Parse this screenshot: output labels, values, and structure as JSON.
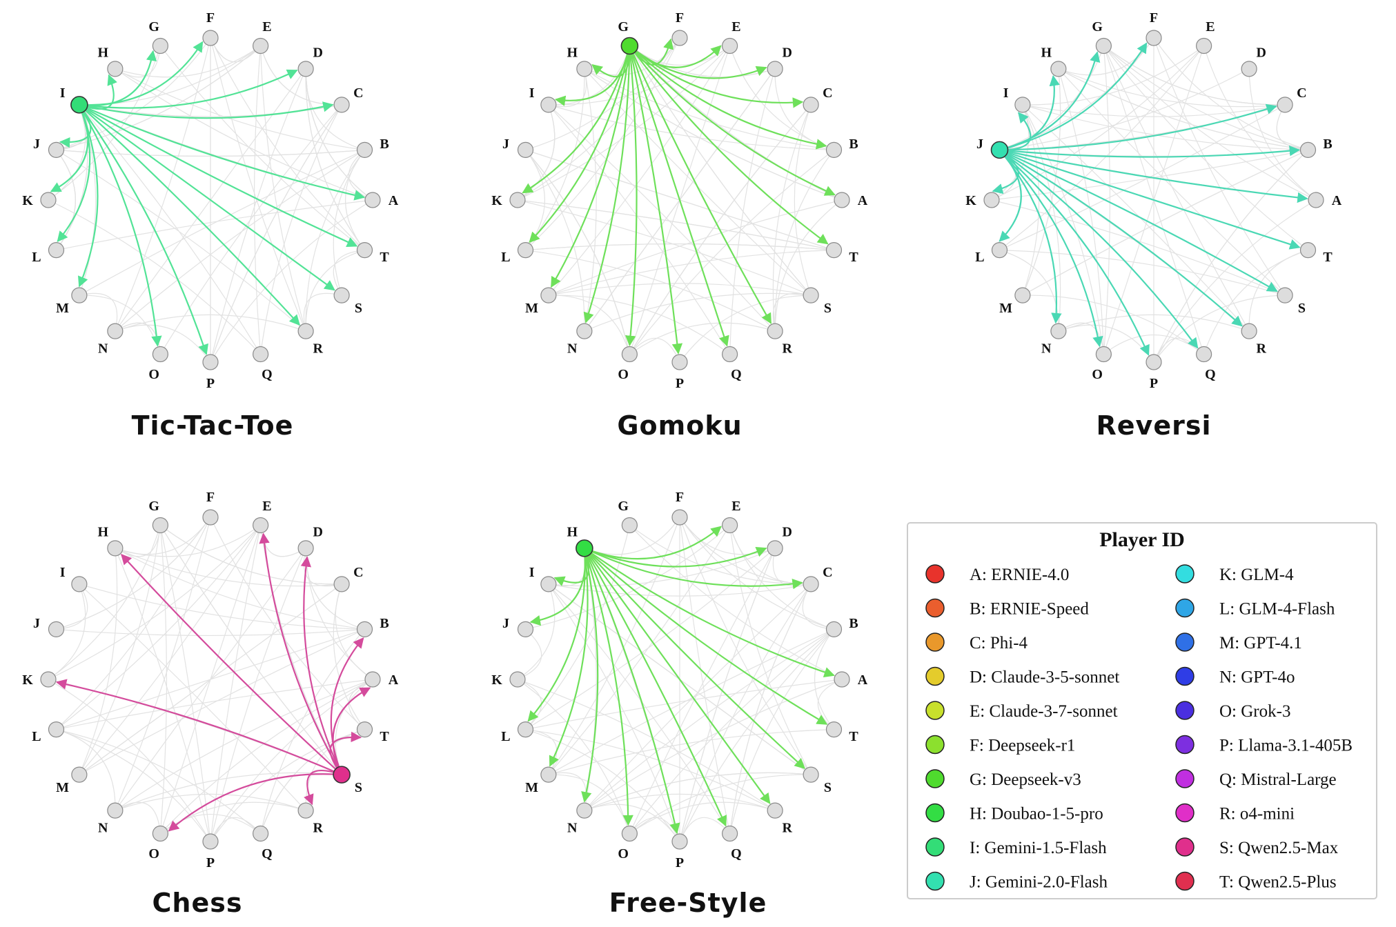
{
  "nodes": [
    {
      "id": "A",
      "player": "ERNIE-4.0",
      "color": "#e8332c"
    },
    {
      "id": "B",
      "player": "ERNIE-Speed",
      "color": "#ea5e2e"
    },
    {
      "id": "C",
      "player": "Phi-4",
      "color": "#e9982b"
    },
    {
      "id": "D",
      "player": "Claude-3-5-sonnet",
      "color": "#e4cc2c"
    },
    {
      "id": "E",
      "player": "Claude-3-7-sonnet",
      "color": "#c8e02c"
    },
    {
      "id": "F",
      "player": "Deepseek-r1",
      "color": "#8ce02e"
    },
    {
      "id": "G",
      "player": "Deepseek-v3",
      "color": "#4fdb2e"
    },
    {
      "id": "H",
      "player": "Doubao-1-5-pro",
      "color": "#33dd44"
    },
    {
      "id": "I",
      "player": "Gemini-1.5-Flash",
      "color": "#33dd77"
    },
    {
      "id": "J",
      "player": "Gemini-2.0-Flash",
      "color": "#33e0b0"
    },
    {
      "id": "K",
      "player": "GLM-4",
      "color": "#33dde0"
    },
    {
      "id": "L",
      "player": "GLM-4-Flash",
      "color": "#2fa6e6"
    },
    {
      "id": "M",
      "player": "GPT-4.1",
      "color": "#2f70e6"
    },
    {
      "id": "N",
      "player": "GPT-4o",
      "color": "#2f3de6"
    },
    {
      "id": "O",
      "player": "Grok-3",
      "color": "#4a2fe0"
    },
    {
      "id": "P",
      "player": "Llama-3.1-405B",
      "color": "#7d2fe0"
    },
    {
      "id": "Q",
      "player": "Mistral-Large",
      "color": "#c02fe0"
    },
    {
      "id": "R",
      "player": "o4-mini",
      "color": "#e02fc8"
    },
    {
      "id": "S",
      "player": "Qwen2.5-Max",
      "color": "#e02f8c"
    },
    {
      "id": "T",
      "player": "Qwen2.5-Plus",
      "color": "#e02f4f"
    }
  ],
  "legend": {
    "title": "Player ID",
    "entries": [
      "A: ERNIE-4.0",
      "B: ERNIE-Speed",
      "C: Phi-4",
      "D: Claude-3-5-sonnet",
      "E: Claude-3-7-sonnet",
      "F: Deepseek-r1",
      "G: Deepseek-v3",
      "H: Doubao-1-5-pro",
      "I: Gemini-1.5-Flash",
      "J: Gemini-2.0-Flash",
      "K: GLM-4",
      "L: GLM-4-Flash",
      "M: GPT-4.1",
      "N: GPT-4o",
      "O: Grok-3",
      "P: Llama-3.1-405B",
      "Q: Mistral-Large",
      "R: o4-mini",
      "S: Qwen2.5-Max",
      "T: Qwen2.5-Plus"
    ]
  },
  "panels": [
    {
      "title": "Tic-Tac-Toe",
      "hub": "I",
      "edge_color": "#52e396",
      "targets": [
        "G",
        "F",
        "H",
        "D",
        "C",
        "A",
        "T",
        "S",
        "R",
        "P",
        "O",
        "J",
        "K",
        "L",
        "M"
      ]
    },
    {
      "title": "Gomoku",
      "hub": "G",
      "edge_color": "#6ee05a",
      "targets": [
        "F",
        "E",
        "D",
        "C",
        "B",
        "A",
        "T",
        "R",
        "Q",
        "P",
        "O",
        "N",
        "M",
        "L",
        "K",
        "I",
        "H"
      ]
    },
    {
      "title": "Reversi",
      "hub": "J",
      "edge_color": "#4ad8b4",
      "targets": [
        "H",
        "G",
        "F",
        "C",
        "B",
        "A",
        "T",
        "S",
        "R",
        "Q",
        "P",
        "O",
        "N",
        "L",
        "K",
        "I"
      ]
    },
    {
      "title": "Chess",
      "hub": "S",
      "edge_color": "#d44b9c",
      "targets": [
        "H",
        "E",
        "D",
        "B",
        "A",
        "T",
        "R",
        "O",
        "K"
      ]
    },
    {
      "title": "Free-Style",
      "hub": "H",
      "edge_color": "#6ee05a",
      "targets": [
        "E",
        "D",
        "C",
        "A",
        "T",
        "S",
        "R",
        "Q",
        "P",
        "O",
        "N",
        "M",
        "L",
        "J",
        "I"
      ]
    }
  ],
  "colors": {
    "node_fill": "#dddddd",
    "node_stroke": "#8a8a8a",
    "background_edge": "#e2e2e2",
    "legend_border": "#cccccc"
  }
}
